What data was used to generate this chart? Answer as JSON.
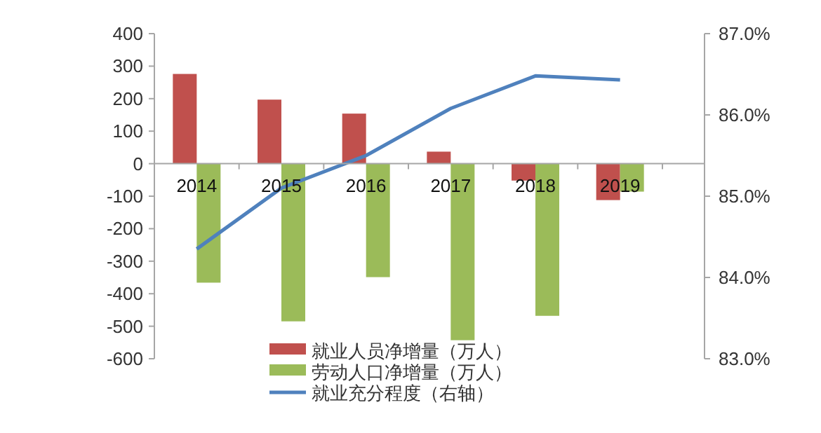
{
  "chart_data": {
    "type": "bar",
    "categories": [
      "2014",
      "2015",
      "2016",
      "2017",
      "2018",
      "2019"
    ],
    "series": [
      {
        "name": "就业人员净增量（万人）",
        "color": "#c0504d",
        "values": [
          276,
          197,
          154,
          37,
          -52,
          -112
        ]
      },
      {
        "name": "劳动人口净增量（万人）",
        "color": "#9bbb59",
        "values": [
          -366,
          -485,
          -349,
          -543,
          -468,
          -86
        ]
      },
      {
        "name": "就业充分程度（右轴）",
        "color": "#4f81bd",
        "type": "line",
        "axis": "y2",
        "values": [
          84.35,
          85.1,
          85.5,
          86.08,
          86.48,
          86.43
        ]
      }
    ],
    "ylim": [
      -600,
      400
    ],
    "yticks": [
      -600,
      -500,
      -400,
      -300,
      -200,
      -100,
      0,
      100,
      200,
      300,
      400
    ],
    "y2lim": [
      83,
      87
    ],
    "y2ticks": [
      {
        "value": 83,
        "label": "83.0%"
      },
      {
        "value": 84,
        "label": "84.0%"
      },
      {
        "value": 85,
        "label": "85.0%"
      },
      {
        "value": 86,
        "label": "86.0%"
      },
      {
        "value": 87,
        "label": "87.0%"
      }
    ],
    "legend": "bottom",
    "grid": false
  }
}
